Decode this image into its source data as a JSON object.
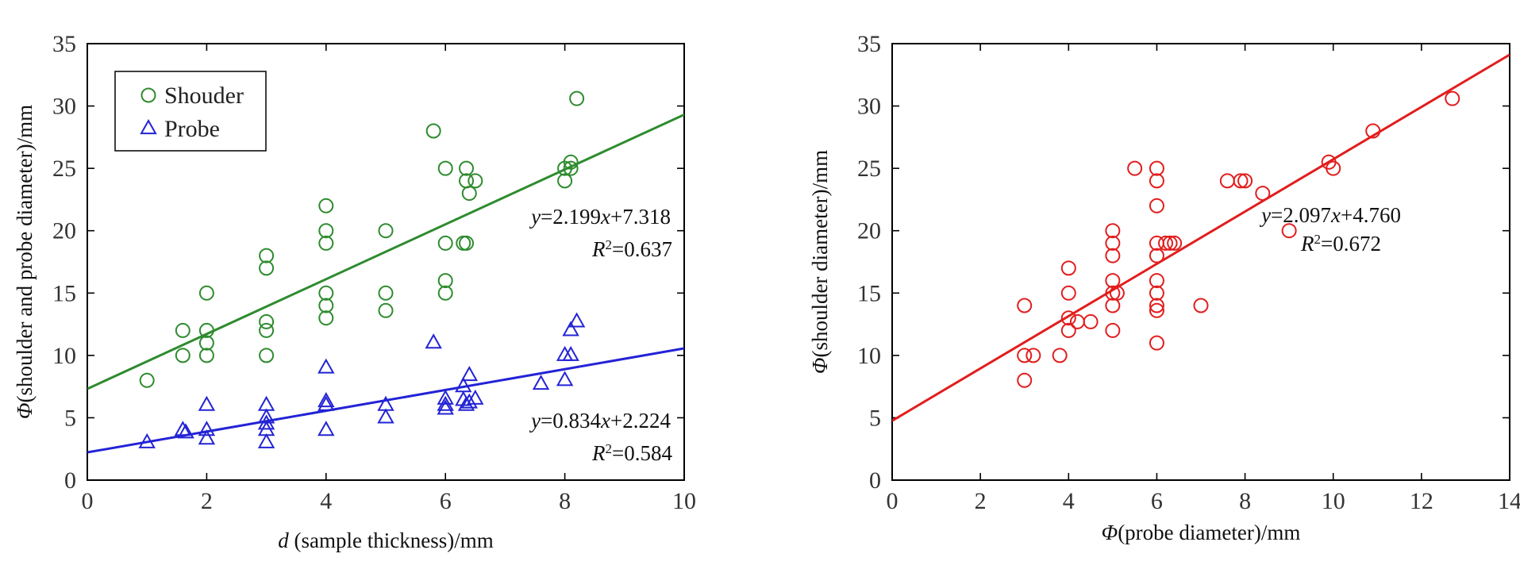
{
  "chart_data": [
    {
      "type": "scatter",
      "xlabel_var": "d",
      "xlabel_rest": " (sample thickness)/mm",
      "ylabel_var": "Φ",
      "ylabel_rest": "(shoulder and probe diameter)/mm",
      "xlim": [
        0,
        10
      ],
      "ylim": [
        0,
        35
      ],
      "xticks": [
        0,
        2,
        4,
        6,
        8,
        10
      ],
      "yticks": [
        0,
        5,
        10,
        15,
        20,
        25,
        30,
        35
      ],
      "legend": {
        "location": "top-left"
      },
      "series": [
        {
          "name": "Shouder",
          "marker": "circle",
          "color": "#2e8b2e",
          "points": [
            [
              1.0,
              8.0
            ],
            [
              1.6,
              12.0
            ],
            [
              1.6,
              10.0
            ],
            [
              2.0,
              15.0
            ],
            [
              2.0,
              12.0
            ],
            [
              2.0,
              11.0
            ],
            [
              2.0,
              10.0
            ],
            [
              3.0,
              18.0
            ],
            [
              3.0,
              17.0
            ],
            [
              3.0,
              12.7
            ],
            [
              3.0,
              12.0
            ],
            [
              3.0,
              10.0
            ],
            [
              4.0,
              22.0
            ],
            [
              4.0,
              20.0
            ],
            [
              4.0,
              19.0
            ],
            [
              4.0,
              15.0
            ],
            [
              4.0,
              14.0
            ],
            [
              4.0,
              13.0
            ],
            [
              5.0,
              20.0
            ],
            [
              5.0,
              15.0
            ],
            [
              5.0,
              13.6
            ],
            [
              5.8,
              28.0
            ],
            [
              6.0,
              25.0
            ],
            [
              6.0,
              19.0
            ],
            [
              6.0,
              16.0
            ],
            [
              6.0,
              15.0
            ],
            [
              6.3,
              19.0
            ],
            [
              6.35,
              19.0
            ],
            [
              6.35,
              25.0
            ],
            [
              6.35,
              24.0
            ],
            [
              6.4,
              23.0
            ],
            [
              6.5,
              24.0
            ],
            [
              8.0,
              25.0
            ],
            [
              8.0,
              24.0
            ],
            [
              8.1,
              25.5
            ],
            [
              8.1,
              25.0
            ],
            [
              8.2,
              30.6
            ]
          ],
          "fit": {
            "slope": 2.199,
            "intercept": 7.318,
            "equation": "y=2.199x+7.318",
            "r2": "R²=0.637"
          }
        },
        {
          "name": "Probe",
          "marker": "triangle",
          "color": "#2323d6",
          "points": [
            [
              1.0,
              3.0
            ],
            [
              1.6,
              4.0
            ],
            [
              1.65,
              3.8
            ],
            [
              2.0,
              6.0
            ],
            [
              2.0,
              4.0
            ],
            [
              2.0,
              3.3
            ],
            [
              3.0,
              6.0
            ],
            [
              3.0,
              5.0
            ],
            [
              3.0,
              4.5
            ],
            [
              3.0,
              4.0
            ],
            [
              3.0,
              3.0
            ],
            [
              4.0,
              9.0
            ],
            [
              4.0,
              6.3
            ],
            [
              4.0,
              6.0
            ],
            [
              4.0,
              4.0
            ],
            [
              5.0,
              6.0
            ],
            [
              5.0,
              5.0
            ],
            [
              5.8,
              11.0
            ],
            [
              6.0,
              6.5
            ],
            [
              6.0,
              6.0
            ],
            [
              6.0,
              5.7
            ],
            [
              6.3,
              7.5
            ],
            [
              6.3,
              6.4
            ],
            [
              6.35,
              6.0
            ],
            [
              6.4,
              6.2
            ],
            [
              6.4,
              8.4
            ],
            [
              6.5,
              6.5
            ],
            [
              7.6,
              7.7
            ],
            [
              8.0,
              10.0
            ],
            [
              8.0,
              8.0
            ],
            [
              8.1,
              12.0
            ],
            [
              8.1,
              10.0
            ],
            [
              8.2,
              12.7
            ]
          ],
          "fit": {
            "slope": 0.834,
            "intercept": 2.224,
            "equation": "y=0.834x+2.224",
            "r2": "R²=0.584"
          }
        }
      ]
    },
    {
      "type": "scatter",
      "xlabel_var": "Φ",
      "xlabel_rest": "(probe diameter)/mm",
      "ylabel_var": "Φ",
      "ylabel_rest": "(shoulder diameter)/mm",
      "xlim": [
        0,
        14
      ],
      "ylim": [
        0,
        35
      ],
      "xticks": [
        0,
        2,
        4,
        6,
        8,
        10,
        12,
        14
      ],
      "yticks": [
        0,
        5,
        10,
        15,
        20,
        25,
        30,
        35
      ],
      "series": [
        {
          "marker": "circle",
          "color": "#e21d1d",
          "points": [
            [
              3.0,
              14.0
            ],
            [
              3.0,
              10.0
            ],
            [
              3.0,
              8.0
            ],
            [
              3.2,
              10.0
            ],
            [
              3.8,
              10.0
            ],
            [
              4.0,
              17.0
            ],
            [
              4.0,
              15.0
            ],
            [
              4.0,
              13.0
            ],
            [
              4.0,
              12.0
            ],
            [
              4.2,
              12.7
            ],
            [
              4.5,
              12.7
            ],
            [
              5.0,
              20.0
            ],
            [
              5.0,
              19.0
            ],
            [
              5.0,
              18.0
            ],
            [
              5.0,
              16.0
            ],
            [
              5.0,
              15.0
            ],
            [
              5.0,
              14.0
            ],
            [
              5.0,
              12.0
            ],
            [
              5.1,
              15.0
            ],
            [
              5.5,
              25.0
            ],
            [
              6.0,
              25.0
            ],
            [
              6.0,
              24.0
            ],
            [
              6.0,
              22.0
            ],
            [
              6.0,
              19.0
            ],
            [
              6.0,
              18.0
            ],
            [
              6.0,
              16.0
            ],
            [
              6.0,
              15.0
            ],
            [
              6.0,
              14.0
            ],
            [
              6.0,
              13.6
            ],
            [
              6.0,
              11.0
            ],
            [
              6.2,
              19.0
            ],
            [
              6.3,
              19.0
            ],
            [
              6.4,
              19.0
            ],
            [
              7.0,
              14.0
            ],
            [
              7.6,
              24.0
            ],
            [
              7.9,
              24.0
            ],
            [
              8.0,
              24.0
            ],
            [
              8.4,
              23.0
            ],
            [
              9.0,
              20.0
            ],
            [
              9.9,
              25.5
            ],
            [
              10.0,
              25.0
            ],
            [
              10.9,
              28.0
            ],
            [
              12.7,
              30.6
            ]
          ],
          "fit": {
            "slope": 2.097,
            "intercept": 4.76,
            "equation": "y=2.097x+4.760",
            "r2": "R²=0.672"
          }
        }
      ]
    }
  ]
}
